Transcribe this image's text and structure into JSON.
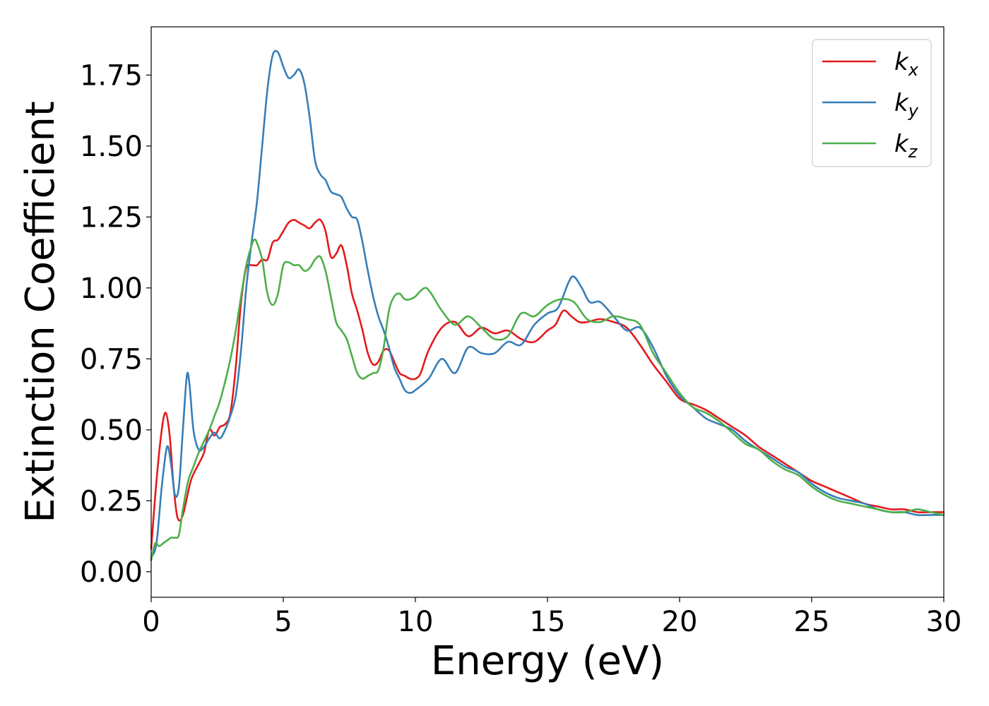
{
  "chart_data": {
    "type": "line",
    "title": "",
    "xlabel": "Energy (eV)",
    "ylabel": "Extinction Coefficient",
    "xlim": [
      0,
      30
    ],
    "ylim": [
      -0.09,
      1.92
    ],
    "xticks": [
      0,
      5,
      10,
      15,
      20,
      25,
      30
    ],
    "xtick_labels": [
      "0",
      "5",
      "10",
      "15",
      "20",
      "25",
      "30"
    ],
    "yticks": [
      0,
      0.25,
      0.5,
      0.75,
      1.0,
      1.25,
      1.5,
      1.75
    ],
    "ytick_labels": [
      "0.00",
      "0.25",
      "0.50",
      "0.75",
      "1.00",
      "1.25",
      "1.50",
      "1.75"
    ],
    "grid": false,
    "legend_position": "top-right",
    "series": [
      {
        "name": "k",
        "subscript": "x",
        "color": "#e41a1c",
        "x": [
          0,
          0.2,
          0.4,
          0.55,
          0.7,
          0.85,
          1.0,
          1.2,
          1.5,
          1.8,
          2.0,
          2.2,
          2.4,
          2.6,
          2.8,
          3.0,
          3.2,
          3.4,
          3.6,
          3.8,
          4.0,
          4.2,
          4.4,
          4.6,
          4.8,
          5.0,
          5.2,
          5.4,
          5.6,
          5.8,
          6.0,
          6.2,
          6.4,
          6.6,
          6.8,
          7.0,
          7.2,
          7.4,
          7.6,
          7.8,
          8.0,
          8.2,
          8.4,
          8.6,
          8.8,
          9.0,
          9.2,
          9.4,
          9.6,
          9.8,
          10.0,
          10.2,
          10.5,
          11.0,
          11.5,
          12.0,
          12.5,
          13.0,
          13.5,
          14.0,
          14.5,
          15.0,
          15.3,
          15.6,
          15.9,
          16.2,
          16.5,
          17.0,
          17.5,
          18.0,
          18.5,
          19.0,
          19.5,
          20.0,
          20.5,
          21.0,
          21.5,
          22.0,
          22.5,
          23.0,
          23.5,
          24.0,
          24.5,
          25.0,
          25.5,
          26.0,
          26.5,
          27.0,
          27.5,
          28.0,
          28.5,
          29.0,
          29.5,
          30.0
        ],
        "y": [
          0.08,
          0.32,
          0.5,
          0.56,
          0.48,
          0.3,
          0.19,
          0.2,
          0.32,
          0.38,
          0.42,
          0.5,
          0.48,
          0.51,
          0.52,
          0.56,
          0.72,
          0.95,
          1.07,
          1.08,
          1.08,
          1.1,
          1.1,
          1.16,
          1.17,
          1.2,
          1.23,
          1.24,
          1.23,
          1.22,
          1.21,
          1.23,
          1.24,
          1.2,
          1.11,
          1.12,
          1.15,
          1.08,
          0.98,
          0.92,
          0.85,
          0.77,
          0.73,
          0.74,
          0.78,
          0.78,
          0.74,
          0.7,
          0.69,
          0.68,
          0.68,
          0.7,
          0.78,
          0.86,
          0.88,
          0.83,
          0.86,
          0.84,
          0.85,
          0.82,
          0.81,
          0.85,
          0.87,
          0.92,
          0.9,
          0.88,
          0.88,
          0.89,
          0.88,
          0.86,
          0.8,
          0.73,
          0.67,
          0.61,
          0.59,
          0.57,
          0.54,
          0.51,
          0.48,
          0.44,
          0.41,
          0.38,
          0.35,
          0.32,
          0.3,
          0.28,
          0.26,
          0.24,
          0.23,
          0.22,
          0.22,
          0.21,
          0.21,
          0.21
        ]
      },
      {
        "name": "k",
        "subscript": "y",
        "color": "#377eb8",
        "x": [
          0,
          0.2,
          0.4,
          0.6,
          0.75,
          0.9,
          1.05,
          1.2,
          1.35,
          1.45,
          1.6,
          1.8,
          2.0,
          2.2,
          2.4,
          2.6,
          2.8,
          3.0,
          3.2,
          3.4,
          3.6,
          3.8,
          4.0,
          4.2,
          4.4,
          4.6,
          4.8,
          5.0,
          5.2,
          5.4,
          5.6,
          5.8,
          6.0,
          6.2,
          6.4,
          6.6,
          6.8,
          7.0,
          7.2,
          7.4,
          7.6,
          7.8,
          8.0,
          8.2,
          8.4,
          8.6,
          8.8,
          9.0,
          9.2,
          9.4,
          9.6,
          9.8,
          10.0,
          10.5,
          11.0,
          11.5,
          12.0,
          12.5,
          13.0,
          13.5,
          14.0,
          14.5,
          15.0,
          15.4,
          15.8,
          16.0,
          16.3,
          16.6,
          17.0,
          17.5,
          18.0,
          18.5,
          19.0,
          19.5,
          20.0,
          20.5,
          21.0,
          21.5,
          22.0,
          22.5,
          23.0,
          23.5,
          24.0,
          24.5,
          25.0,
          25.5,
          26.0,
          26.5,
          27.0,
          27.5,
          28.0,
          28.5,
          29.0,
          29.5,
          30.0
        ],
        "y": [
          0.05,
          0.1,
          0.3,
          0.44,
          0.38,
          0.27,
          0.3,
          0.5,
          0.69,
          0.66,
          0.5,
          0.43,
          0.44,
          0.47,
          0.49,
          0.47,
          0.5,
          0.55,
          0.62,
          0.78,
          1.0,
          1.16,
          1.3,
          1.5,
          1.7,
          1.82,
          1.83,
          1.78,
          1.74,
          1.75,
          1.77,
          1.72,
          1.6,
          1.45,
          1.4,
          1.38,
          1.34,
          1.33,
          1.32,
          1.28,
          1.25,
          1.24,
          1.16,
          1.06,
          0.97,
          0.9,
          0.85,
          0.79,
          0.72,
          0.68,
          0.64,
          0.63,
          0.64,
          0.68,
          0.75,
          0.7,
          0.79,
          0.77,
          0.77,
          0.81,
          0.8,
          0.87,
          0.91,
          0.93,
          1.02,
          1.04,
          1.0,
          0.95,
          0.95,
          0.9,
          0.85,
          0.86,
          0.79,
          0.69,
          0.62,
          0.58,
          0.54,
          0.52,
          0.5,
          0.46,
          0.43,
          0.4,
          0.37,
          0.35,
          0.31,
          0.28,
          0.26,
          0.25,
          0.24,
          0.22,
          0.21,
          0.21,
          0.2,
          0.2,
          0.2
        ]
      },
      {
        "name": "k",
        "subscript": "z",
        "color": "#4daf4a",
        "x": [
          0,
          0.15,
          0.3,
          0.45,
          0.6,
          0.75,
          0.9,
          1.05,
          1.2,
          1.4,
          1.6,
          1.8,
          2.0,
          2.2,
          2.4,
          2.6,
          2.8,
          3.0,
          3.2,
          3.4,
          3.6,
          3.8,
          3.9,
          4.0,
          4.2,
          4.4,
          4.6,
          4.8,
          5.0,
          5.2,
          5.4,
          5.6,
          5.8,
          6.0,
          6.2,
          6.4,
          6.6,
          6.8,
          7.0,
          7.2,
          7.4,
          7.6,
          7.8,
          8.0,
          8.2,
          8.4,
          8.6,
          8.8,
          9.0,
          9.2,
          9.4,
          9.6,
          9.8,
          10.0,
          10.2,
          10.4,
          10.6,
          11.0,
          11.5,
          12.0,
          12.5,
          13.0,
          13.5,
          14.0,
          14.5,
          15.0,
          15.5,
          16.0,
          16.5,
          17.0,
          17.5,
          18.0,
          18.5,
          19.0,
          19.5,
          20.0,
          20.5,
          21.0,
          21.5,
          22.0,
          22.5,
          23.0,
          23.5,
          24.0,
          24.5,
          25.0,
          25.5,
          26.0,
          26.5,
          27.0,
          27.5,
          28.0,
          28.5,
          29.0,
          29.5,
          30.0
        ],
        "y": [
          0.04,
          0.1,
          0.09,
          0.1,
          0.11,
          0.12,
          0.12,
          0.13,
          0.22,
          0.32,
          0.37,
          0.42,
          0.46,
          0.5,
          0.55,
          0.6,
          0.67,
          0.75,
          0.85,
          0.97,
          1.08,
          1.15,
          1.17,
          1.16,
          1.1,
          0.98,
          0.94,
          0.98,
          1.08,
          1.09,
          1.08,
          1.08,
          1.06,
          1.07,
          1.1,
          1.11,
          1.06,
          0.97,
          0.88,
          0.85,
          0.82,
          0.76,
          0.7,
          0.68,
          0.69,
          0.7,
          0.71,
          0.79,
          0.92,
          0.97,
          0.98,
          0.96,
          0.96,
          0.97,
          0.99,
          1.0,
          0.98,
          0.92,
          0.87,
          0.9,
          0.86,
          0.82,
          0.83,
          0.91,
          0.9,
          0.94,
          0.96,
          0.95,
          0.89,
          0.88,
          0.9,
          0.89,
          0.87,
          0.77,
          0.7,
          0.63,
          0.58,
          0.56,
          0.53,
          0.49,
          0.45,
          0.43,
          0.39,
          0.36,
          0.34,
          0.3,
          0.27,
          0.25,
          0.24,
          0.23,
          0.22,
          0.21,
          0.21,
          0.22,
          0.21,
          0.2
        ]
      }
    ]
  }
}
